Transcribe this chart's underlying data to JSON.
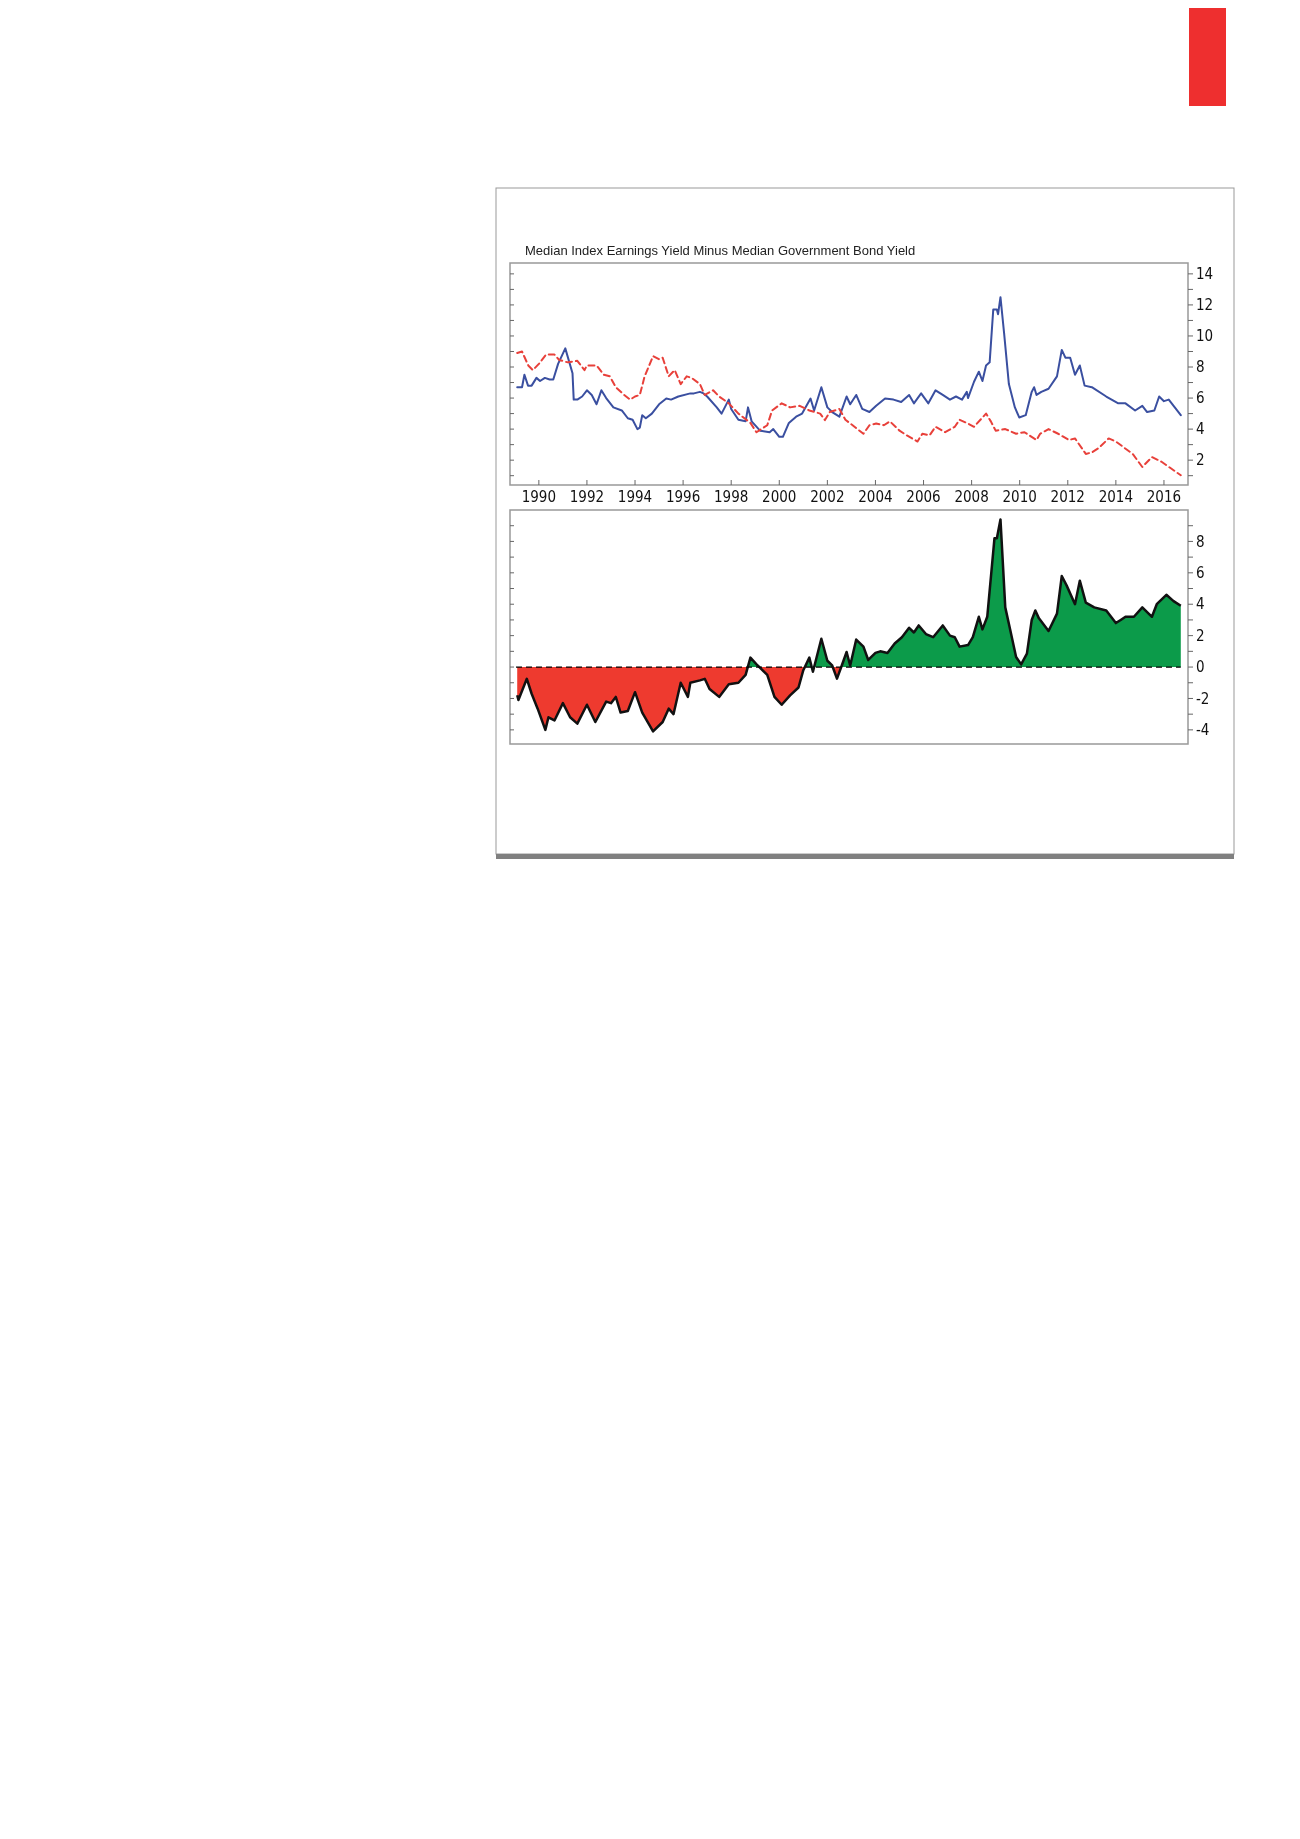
{
  "chart_data": [
    {
      "type": "line",
      "title": "Median Index Earnings Yield Minus Median Government Bond Yield",
      "xlim": [
        1988.8,
        2017.0
      ],
      "ylim": [
        0.4,
        14.7
      ],
      "xticks": [
        1990,
        1992,
        1994,
        1996,
        1998,
        2000,
        2002,
        2004,
        2006,
        2008,
        2010,
        2012,
        2014,
        2016
      ],
      "yticks": [
        {
          "value": 1,
          "label": null
        },
        2,
        {
          "value": 3,
          "label": null
        },
        4,
        {
          "value": 5,
          "label": null
        },
        6,
        {
          "value": 7,
          "label": null
        },
        8,
        {
          "value": 9,
          "label": null
        },
        10,
        {
          "value": 11,
          "label": null
        },
        12,
        {
          "value": 13,
          "label": null
        },
        14
      ],
      "series": [
        {
          "color": "#3a4fa0",
          "line_style": "solid",
          "x": [
            1989.1,
            1989.3,
            1989.4,
            1989.55,
            1989.7,
            1989.9,
            1990.05,
            1990.25,
            1990.45,
            1990.6,
            1990.8,
            1991.1,
            1991.4,
            1991.45,
            1991.6,
            1991.8,
            1992.0,
            1992.2,
            1992.4,
            1992.6,
            1992.8,
            1993.1,
            1993.45,
            1993.7,
            1993.9,
            1994.1,
            1994.2,
            1994.3,
            1994.45,
            1994.7,
            1995.0,
            1995.3,
            1995.5,
            1995.8,
            1996.3,
            1996.45,
            1996.7,
            1996.85,
            1997.0,
            1997.4,
            1997.6,
            1997.9,
            1998.0,
            1998.3,
            1998.6,
            1998.7,
            1998.85,
            1999.2,
            1999.6,
            1999.75,
            2000.0,
            2000.15,
            2000.4,
            2000.7,
            2000.95,
            2001.3,
            2001.45,
            2001.75,
            2002.0,
            2002.2,
            2002.5,
            2002.8,
            2002.95,
            2003.2,
            2003.45,
            2003.75,
            2004.03,
            2004.4,
            2004.75,
            2005.07,
            2005.4,
            2005.6,
            2005.9,
            2006.2,
            2006.5,
            2006.8,
            2007.1,
            2007.35,
            2007.6,
            2007.8,
            2007.85,
            2008.1,
            2008.3,
            2008.45,
            2008.6,
            2008.75,
            2008.9,
            2009.05,
            2009.1,
            2009.2,
            2009.35,
            2009.55,
            2009.8,
            2009.98,
            2010.25,
            2010.5,
            2010.6,
            2010.7,
            2010.9,
            2011.2,
            2011.55,
            2011.75,
            2011.9,
            2012.1,
            2012.3,
            2012.5,
            2012.7,
            2013.0,
            2013.6,
            2014.1,
            2014.4,
            2014.8,
            2015.1,
            2015.3,
            2015.6,
            2015.8,
            2016.0,
            2016.2,
            2016.45,
            2016.7
          ],
          "values": [
            6.7,
            6.7,
            7.5,
            6.8,
            6.8,
            7.3,
            7.1,
            7.3,
            7.2,
            7.2,
            8.2,
            9.2,
            7.6,
            5.9,
            5.9,
            6.1,
            6.5,
            6.2,
            5.6,
            6.5,
            6.0,
            5.4,
            5.2,
            4.7,
            4.6,
            4.0,
            4.1,
            4.9,
            4.7,
            5.0,
            5.6,
            5.97,
            5.9,
            6.1,
            6.3,
            6.3,
            6.4,
            6.3,
            6.1,
            5.4,
            5.0,
            5.9,
            5.3,
            4.6,
            4.5,
            5.4,
            4.5,
            3.9,
            3.8,
            4.0,
            3.5,
            3.5,
            4.4,
            4.8,
            5.0,
            5.97,
            5.2,
            6.7,
            5.4,
            5.1,
            4.8,
            6.1,
            5.6,
            6.2,
            5.3,
            5.1,
            5.5,
            5.97,
            5.9,
            5.75,
            6.2,
            5.66,
            6.3,
            5.66,
            6.5,
            6.2,
            5.9,
            6.1,
            5.9,
            6.4,
            6.0,
            7.05,
            7.7,
            7.1,
            8.1,
            8.3,
            11.7,
            11.7,
            11.4,
            12.5,
            10.2,
            6.9,
            5.4,
            4.75,
            4.9,
            6.4,
            6.7,
            6.2,
            6.4,
            6.6,
            7.4,
            9.1,
            8.6,
            8.6,
            7.5,
            8.1,
            6.8,
            6.7,
            6.1,
            5.66,
            5.66,
            5.2,
            5.5,
            5.1,
            5.2,
            6.1,
            5.8,
            5.9,
            5.4,
            4.9
          ]
        },
        {
          "color": "#e8403a",
          "line_style": "dashed",
          "x": [
            1989.1,
            1989.3,
            1989.56,
            1989.75,
            1990.0,
            1990.3,
            1990.65,
            1990.85,
            1991.2,
            1991.6,
            1991.9,
            1992.0,
            1992.4,
            1992.7,
            1992.95,
            1993.2,
            1993.55,
            1993.8,
            1994.0,
            1994.2,
            1994.4,
            1994.75,
            1995.0,
            1995.15,
            1995.4,
            1995.65,
            1995.9,
            1996.15,
            1996.35,
            1996.7,
            1996.9,
            1997.25,
            1997.5,
            1997.9,
            1998.3,
            1998.8,
            1999.05,
            1999.5,
            1999.7,
            2000.1,
            2000.45,
            2000.85,
            2001.25,
            2001.7,
            2001.9,
            2002.1,
            2002.5,
            2002.75,
            2003.05,
            2003.5,
            2003.75,
            2004.03,
            2004.35,
            2004.6,
            2005.0,
            2005.3,
            2005.75,
            2005.95,
            2006.25,
            2006.5,
            2006.9,
            2007.3,
            2007.5,
            2007.85,
            2008.1,
            2008.6,
            2008.8,
            2009.0,
            2009.4,
            2009.85,
            2010.2,
            2010.7,
            2010.85,
            2011.2,
            2011.6,
            2012.05,
            2012.3,
            2012.75,
            2013.0,
            2013.3,
            2013.7,
            2014.0,
            2014.7,
            2015.1,
            2015.5,
            2015.9,
            2016.3,
            2016.7
          ],
          "values": [
            8.9,
            9.0,
            8.1,
            7.8,
            8.2,
            8.8,
            8.8,
            8.45,
            8.3,
            8.4,
            7.8,
            8.1,
            8.1,
            7.5,
            7.4,
            6.7,
            6.2,
            5.9,
            6.1,
            6.2,
            7.4,
            8.7,
            8.5,
            8.6,
            7.4,
            7.8,
            6.9,
            7.4,
            7.3,
            6.9,
            6.2,
            6.5,
            6.1,
            5.66,
            5.0,
            4.4,
            3.8,
            4.25,
            5.2,
            5.66,
            5.4,
            5.5,
            5.2,
            5.0,
            4.58,
            5.1,
            5.3,
            4.6,
            4.25,
            3.7,
            4.25,
            4.36,
            4.25,
            4.5,
            3.9,
            3.6,
            3.2,
            3.7,
            3.6,
            4.15,
            3.8,
            4.15,
            4.6,
            4.36,
            4.15,
            5.0,
            4.5,
            3.9,
            4.0,
            3.7,
            3.8,
            3.3,
            3.7,
            4.0,
            3.7,
            3.3,
            3.4,
            2.4,
            2.5,
            2.8,
            3.4,
            3.2,
            2.4,
            1.56,
            2.2,
            1.9,
            1.46,
            1.03
          ]
        }
      ]
    },
    {
      "type": "area",
      "xlim": [
        1988.8,
        2017.0
      ],
      "ylim": [
        -4.9,
        10
      ],
      "tick_labels": "y",
      "yticks": [
        -4,
        {
          "value": -3,
          "label": null
        },
        -2,
        {
          "value": -1,
          "label": null
        },
        0,
        {
          "value": 1,
          "label": null
        },
        2,
        {
          "value": 3,
          "label": null
        },
        4,
        {
          "value": 5,
          "label": null
        },
        6,
        {
          "value": 7,
          "label": null
        },
        8,
        {
          "value": 9,
          "label": null
        }
      ],
      "ref_lines": [
        {
          "axis": "y",
          "value": 0,
          "color": "#000000",
          "line_style": "dashed"
        }
      ],
      "series": [
        {
          "color": "#111111",
          "x": [
            1989.1,
            1989.15,
            1989.5,
            1989.7,
            1989.95,
            1990.27,
            1990.4,
            1990.65,
            1991.0,
            1991.3,
            1991.6,
            1992.0,
            1992.35,
            1992.8,
            1993.0,
            1993.2,
            1993.4,
            1993.7,
            1994.0,
            1994.3,
            1994.75,
            1995.15,
            1995.4,
            1995.6,
            1995.9,
            1996.2,
            1996.3,
            1996.7,
            1996.9,
            1997.1,
            1997.5,
            1997.9,
            1998.3,
            1998.6,
            1998.8,
            1999.1,
            1999.5,
            1999.8,
            2000.1,
            2000.45,
            2000.8,
            2001.0,
            2001.25,
            2001.4,
            2001.75,
            2002.0,
            2002.2,
            2002.4,
            2002.6,
            2002.8,
            2002.95,
            2003.2,
            2003.5,
            2003.7,
            2004.0,
            2004.2,
            2004.5,
            2004.8,
            2005.1,
            2005.4,
            2005.6,
            2005.8,
            2006.1,
            2006.4,
            2006.8,
            2007.1,
            2007.3,
            2007.5,
            2007.85,
            2008.05,
            2008.3,
            2008.45,
            2008.65,
            2008.95,
            2009.05,
            2009.2,
            2009.4,
            2009.6,
            2009.85,
            2010.06,
            2010.3,
            2010.5,
            2010.65,
            2010.8,
            2011.2,
            2011.55,
            2011.75,
            2011.95,
            2012.3,
            2012.5,
            2012.75,
            2013.1,
            2013.6,
            2014.0,
            2014.2,
            2014.4,
            2014.75,
            2015.1,
            2015.5,
            2015.7,
            2016.1,
            2016.4,
            2016.7
          ],
          "values": [
            -1.8,
            -2.1,
            -0.75,
            -1.7,
            -2.65,
            -4.0,
            -3.2,
            -3.4,
            -2.3,
            -3.2,
            -3.6,
            -2.4,
            -3.5,
            -2.2,
            -2.3,
            -1.9,
            -2.9,
            -2.8,
            -1.6,
            -2.9,
            -4.1,
            -3.5,
            -2.65,
            -3.0,
            -1.0,
            -1.9,
            -1.0,
            -0.85,
            -0.75,
            -1.4,
            -1.9,
            -1.1,
            -1.0,
            -0.5,
            0.6,
            0.1,
            -0.5,
            -1.9,
            -2.4,
            -1.8,
            -1.3,
            -0.2,
            0.6,
            -0.3,
            1.8,
            0.4,
            0.1,
            -0.74,
            0.1,
            0.96,
            0.1,
            1.75,
            1.3,
            0.45,
            0.9,
            1.0,
            0.9,
            1.5,
            1.9,
            2.5,
            2.2,
            2.65,
            2.1,
            1.9,
            2.65,
            2.0,
            1.9,
            1.3,
            1.4,
            1.9,
            3.2,
            2.4,
            3.2,
            8.2,
            8.2,
            9.4,
            3.8,
            2.4,
            0.64,
            0.17,
            0.85,
            3.0,
            3.6,
            3.1,
            2.3,
            3.4,
            5.8,
            5.2,
            4.0,
            5.5,
            4.1,
            3.8,
            3.6,
            2.8,
            3.0,
            3.2,
            3.2,
            3.8,
            3.2,
            4.0,
            4.6,
            4.2,
            3.9
          ],
          "colors": [
            "#ee3a2f",
            "#ee3a2f",
            "#ee3a2f",
            "#ee3a2f",
            "#ee3a2f",
            "#ee3a2f",
            "#ee3a2f",
            "#ee3a2f",
            "#ee3a2f",
            "#ee3a2f",
            "#ee3a2f",
            "#ee3a2f",
            "#ee3a2f",
            "#ee3a2f",
            "#ee3a2f",
            "#ee3a2f",
            "#ee3a2f",
            "#ee3a2f",
            "#ee3a2f",
            "#ee3a2f",
            "#ee3a2f",
            "#ee3a2f",
            "#ee3a2f",
            "#ee3a2f",
            "#ee3a2f",
            "#ee3a2f",
            "#ee3a2f",
            "#ee3a2f",
            "#ee3a2f",
            "#ee3a2f",
            "#ee3a2f",
            "#ee3a2f",
            "#ee3a2f",
            "#ee3a2f",
            "#0c9b4a",
            "#0c9b4a",
            "#ee3a2f",
            "#ee3a2f",
            "#ee3a2f",
            "#ee3a2f",
            "#ee3a2f",
            "#ee3a2f",
            "#0c9b4a",
            "#ee3a2f",
            "#0c9b4a",
            "#0c9b4a",
            "#0c9b4a",
            "#ee3a2f",
            "#0c9b4a",
            "#0c9b4a",
            "#0c9b4a",
            "#0c9b4a",
            "#0c9b4a",
            "#0c9b4a",
            "#0c9b4a",
            "#0c9b4a",
            "#0c9b4a",
            "#0c9b4a",
            "#0c9b4a",
            "#0c9b4a",
            "#0c9b4a",
            "#0c9b4a",
            "#0c9b4a",
            "#0c9b4a",
            "#0c9b4a",
            "#0c9b4a",
            "#0c9b4a",
            "#0c9b4a",
            "#0c9b4a",
            "#0c9b4a",
            "#0c9b4a",
            "#0c9b4a",
            "#0c9b4a",
            "#0c9b4a",
            "#0c9b4a",
            "#0c9b4a",
            "#0c9b4a",
            "#0c9b4a",
            "#0c9b4a",
            "#0c9b4a",
            "#0c9b4a",
            "#0c9b4a",
            "#0c9b4a",
            "#0c9b4a",
            "#0c9b4a",
            "#0c9b4a",
            "#0c9b4a",
            "#0c9b4a",
            "#0c9b4a",
            "#0c9b4a",
            "#0c9b4a",
            "#0c9b4a",
            "#0c9b4a",
            "#0c9b4a",
            "#0c9b4a",
            "#0c9b4a",
            "#0c9b4a",
            "#0c9b4a",
            "#0c9b4a",
            "#0c9b4a",
            "#0c9b4a",
            "#0c9b4a",
            "#0c9b4a"
          ]
        }
      ]
    }
  ]
}
